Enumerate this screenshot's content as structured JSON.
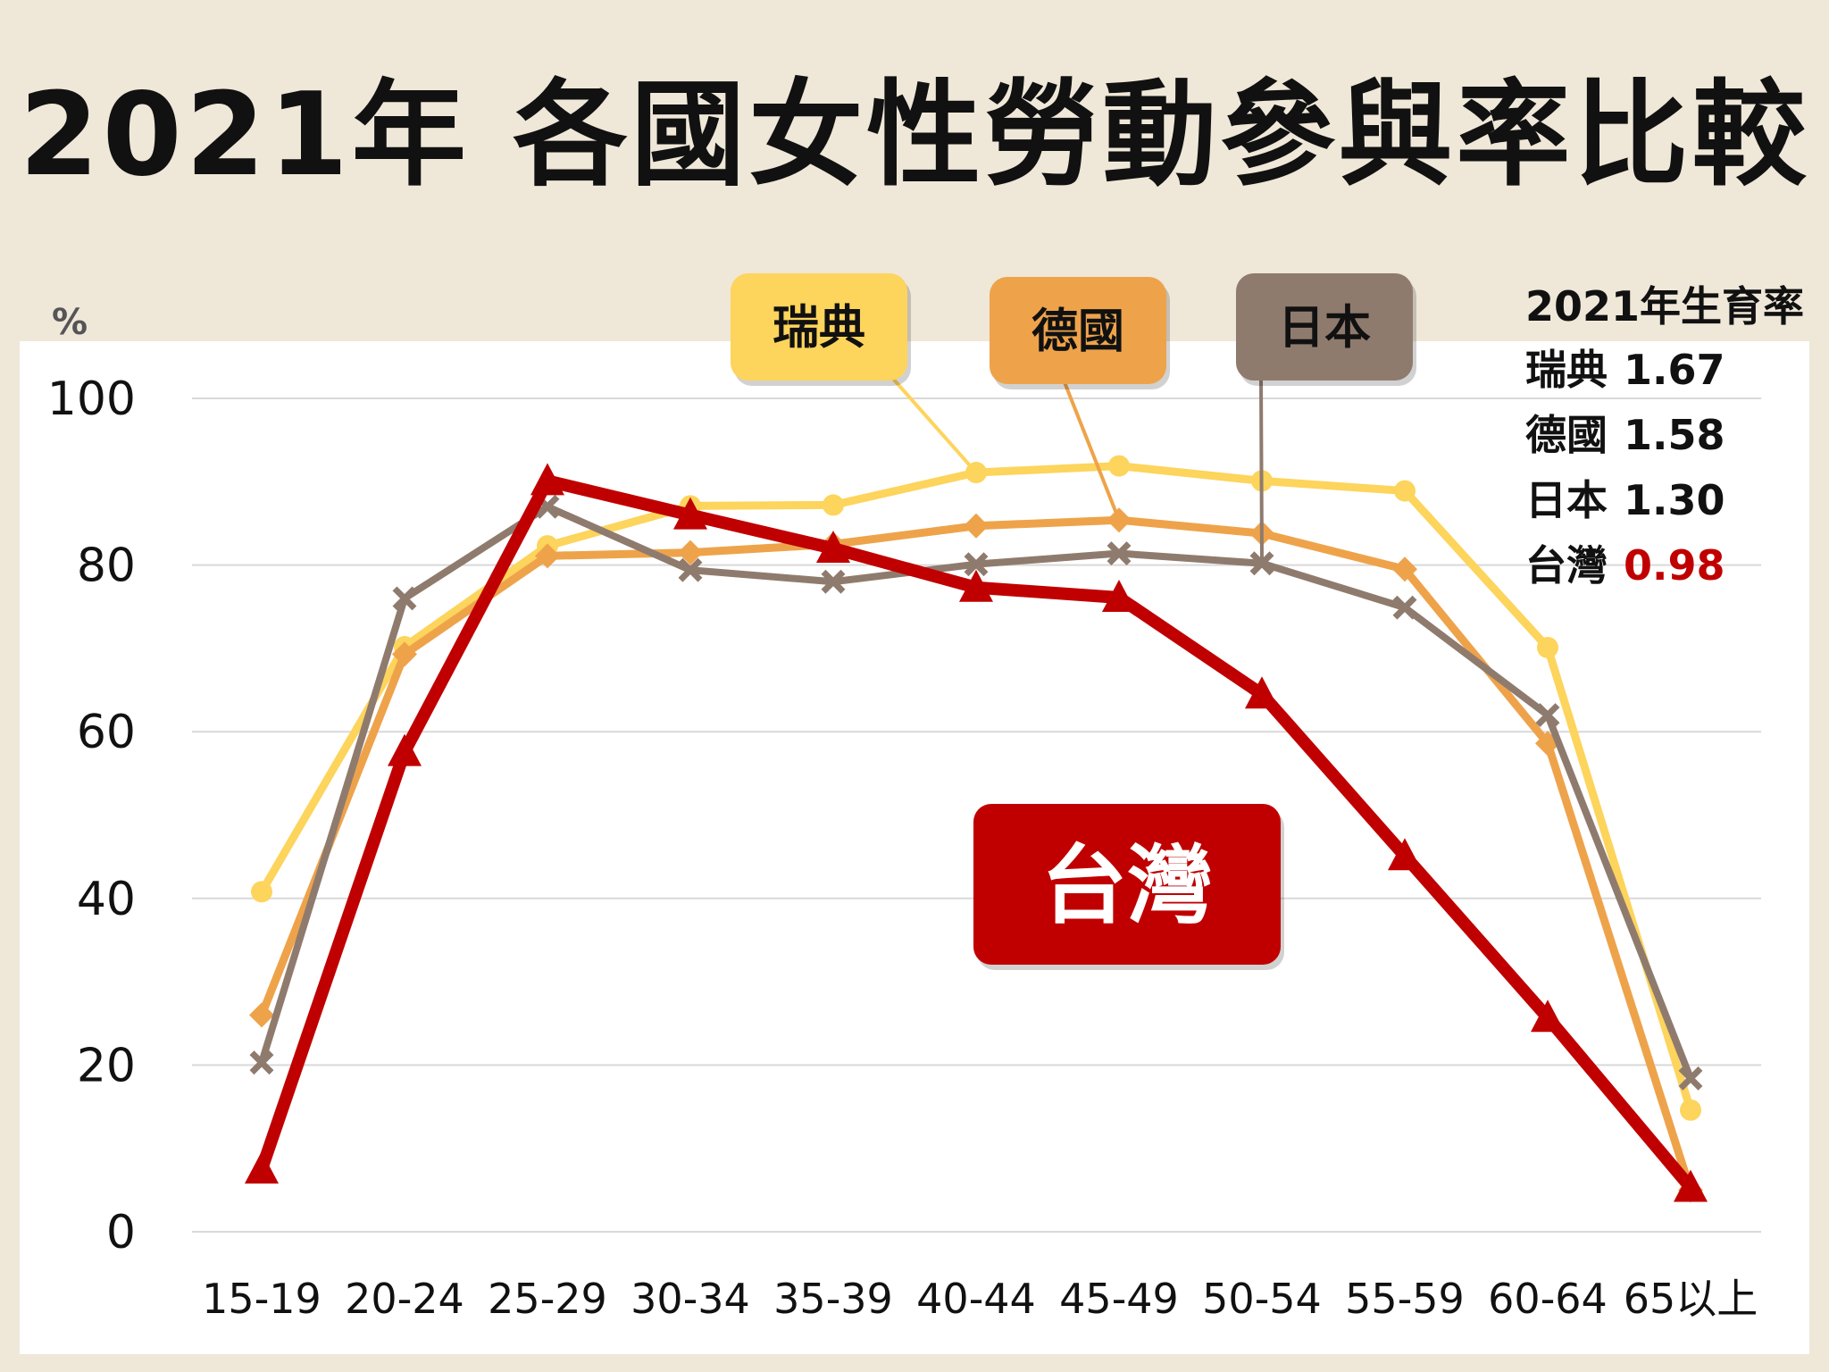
{
  "title": "2021年 各國女性勞動參與率比較",
  "unit": "%",
  "fertility": {
    "heading": "2021年生育率",
    "rows": [
      {
        "country": "瑞典",
        "value": "1.67"
      },
      {
        "country": "德國",
        "value": "1.58"
      },
      {
        "country": "日本",
        "value": "1.30"
      },
      {
        "country": "台灣",
        "value": "0.98"
      }
    ]
  },
  "colors": {
    "sweden": "#fdd45c",
    "germany": "#eea34a",
    "japan": "#8f7b6e",
    "taiwan": "#c00000",
    "grid": "#d9d9d9",
    "background": "#efe7d8"
  },
  "chart_data": {
    "type": "line",
    "title": "2021年 各國女性勞動參與率比較",
    "xlabel": "",
    "ylabel": "%",
    "ylim": [
      0,
      100
    ],
    "yticks": [
      "0",
      "20",
      "40",
      "60",
      "80",
      "100"
    ],
    "categories": [
      "15-19",
      "20-24",
      "25-29",
      "30-34",
      "35-39",
      "40-44",
      "45-49",
      "50-54",
      "55-59",
      "60-64",
      "65以上"
    ],
    "grid": true,
    "legend": "callout labels at top",
    "series": [
      {
        "name": "瑞典",
        "color": "#fdd45c",
        "marker": "circle",
        "values": [
          40.8,
          70.2,
          82.3,
          87.1,
          87.2,
          91.1,
          91.9,
          90.1,
          88.9,
          70.1,
          14.6
        ]
      },
      {
        "name": "德國",
        "color": "#eea34a",
        "marker": "diamond",
        "values": [
          26.0,
          69.3,
          81.1,
          81.5,
          82.5,
          84.7,
          85.4,
          83.8,
          79.5,
          58.6,
          5.0
        ]
      },
      {
        "name": "日本",
        "color": "#8f7b6e",
        "marker": "x",
        "values": [
          20.3,
          76.0,
          87.0,
          79.4,
          78.0,
          80.1,
          81.4,
          80.2,
          74.9,
          62.0,
          18.4
        ]
      },
      {
        "name": "台灣",
        "color": "#c00000",
        "marker": "triangle",
        "values": [
          7.5,
          57.6,
          90.1,
          86.0,
          82.0,
          77.3,
          76.1,
          64.5,
          45.1,
          25.7,
          5.3
        ]
      }
    ],
    "callouts": [
      {
        "series": "瑞典",
        "text": "瑞典"
      },
      {
        "series": "德國",
        "text": "德國"
      },
      {
        "series": "日本",
        "text": "日本"
      },
      {
        "series": "台灣",
        "text": "台灣"
      }
    ]
  }
}
